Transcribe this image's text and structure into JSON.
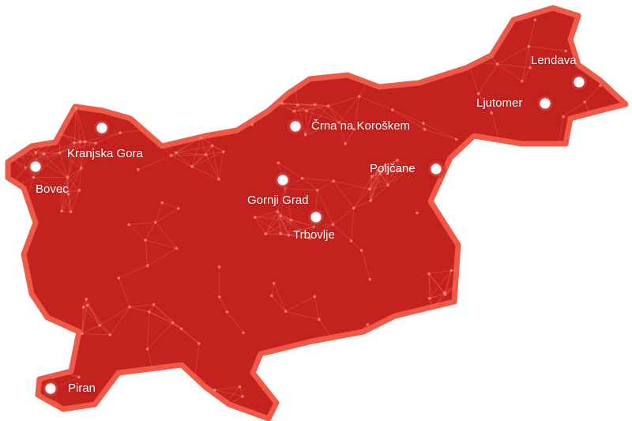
{
  "map": {
    "region": "Slovenia",
    "fill_color": "#c4221e",
    "border_color": "#ef5a48",
    "marker_color": "#ffffff",
    "cities": [
      {
        "name": "Lendava"
      },
      {
        "name": "Ljutomer"
      },
      {
        "name": "Črna na Koroškem"
      },
      {
        "name": "Poljčane"
      },
      {
        "name": "Kranjska Gora"
      },
      {
        "name": "Bovec"
      },
      {
        "name": "Gornji Grad"
      },
      {
        "name": "Trbovlje"
      },
      {
        "name": "Piran"
      }
    ]
  }
}
